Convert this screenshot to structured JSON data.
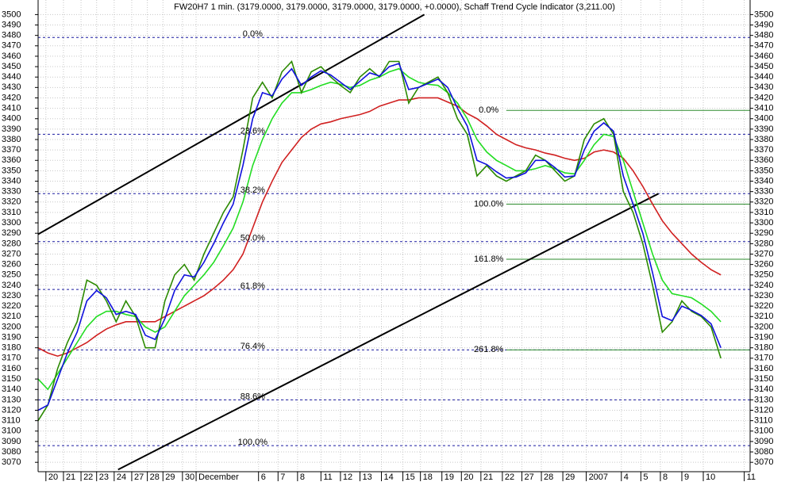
{
  "chart_data": {
    "type": "line",
    "title": "FW20H7 1 min. (3179.0000, 3179.0000, 3179.0000, 3179.0000, +0.0000), Schaff Trend Cycle Indicator (3,211.00)",
    "xlim": [
      0,
      36.5
    ],
    "ylim": [
      3061,
      3514
    ],
    "grid": true,
    "xticks": [
      {
        "value": 0.4,
        "label": "20"
      },
      {
        "value": 1.3,
        "label": "21"
      },
      {
        "value": 2.2,
        "label": "22"
      },
      {
        "value": 3.0,
        "label": "23"
      },
      {
        "value": 3.9,
        "label": "24"
      },
      {
        "value": 4.8,
        "label": "27"
      },
      {
        "value": 5.6,
        "label": "28"
      },
      {
        "value": 6.4,
        "label": "29"
      },
      {
        "value": 7.4,
        "label": "30"
      },
      {
        "value": 8.1,
        "label": "December"
      },
      {
        "value": 11.3,
        "label": "6"
      },
      {
        "value": 12.3,
        "label": "7"
      },
      {
        "value": 13.3,
        "label": "8"
      },
      {
        "value": 14.5,
        "label": "11"
      },
      {
        "value": 15.5,
        "label": "12"
      },
      {
        "value": 16.5,
        "label": "13"
      },
      {
        "value": 17.6,
        "label": "14"
      },
      {
        "value": 18.7,
        "label": "15"
      },
      {
        "value": 19.6,
        "label": "18"
      },
      {
        "value": 20.7,
        "label": "19"
      },
      {
        "value": 21.7,
        "label": "20"
      },
      {
        "value": 22.7,
        "label": "21"
      },
      {
        "value": 23.8,
        "label": "22"
      },
      {
        "value": 24.8,
        "label": "27"
      },
      {
        "value": 25.8,
        "label": "28"
      },
      {
        "value": 26.9,
        "label": "29"
      },
      {
        "value": 28.1,
        "label": "2007"
      },
      {
        "value": 29.9,
        "label": "4"
      },
      {
        "value": 30.9,
        "label": "5"
      },
      {
        "value": 31.9,
        "label": "8"
      },
      {
        "value": 33.0,
        "label": "9"
      },
      {
        "value": 34.1,
        "label": "10"
      },
      {
        "value": 36.2,
        "label": "11"
      }
    ],
    "yticks": [
      3070,
      3080,
      3090,
      3100,
      3110,
      3120,
      3130,
      3140,
      3150,
      3160,
      3170,
      3180,
      3190,
      3200,
      3210,
      3220,
      3230,
      3240,
      3250,
      3260,
      3270,
      3280,
      3290,
      3300,
      3310,
      3320,
      3330,
      3340,
      3350,
      3360,
      3370,
      3380,
      3390,
      3400,
      3410,
      3420,
      3430,
      3440,
      3450,
      3460,
      3470,
      3480,
      3490,
      3500
    ],
    "x": [
      0,
      0.5,
      1,
      1.5,
      2,
      2.5,
      3,
      3.5,
      4,
      4.5,
      5,
      5.5,
      6,
      6.5,
      7,
      7.5,
      8,
      8.5,
      9,
      9.5,
      10,
      10.5,
      11,
      11.5,
      12,
      12.5,
      13,
      13.5,
      14,
      14.5,
      15,
      15.5,
      16,
      16.5,
      17,
      17.5,
      18,
      18.5,
      19,
      19.5,
      20,
      20.5,
      21,
      21.5,
      22,
      22.5,
      23,
      23.5,
      24,
      24.5,
      25,
      25.5,
      26,
      26.5,
      27,
      27.5,
      28,
      28.5,
      29,
      29.5,
      30,
      30.5,
      31,
      31.5,
      32,
      32.5,
      33,
      33.5,
      34,
      34.5,
      35
    ],
    "series": [
      {
        "color": "#d02020",
        "values": [
          3180,
          3175,
          3172,
          3175,
          3180,
          3185,
          3192,
          3198,
          3202,
          3205,
          3205,
          3205,
          3205,
          3210,
          3215,
          3220,
          3225,
          3230,
          3237,
          3245,
          3255,
          3270,
          3295,
          3320,
          3340,
          3358,
          3370,
          3382,
          3390,
          3395,
          3397,
          3400,
          3402,
          3404,
          3407,
          3412,
          3415,
          3418,
          3418,
          3420,
          3420,
          3420,
          3416,
          3412,
          3405,
          3400,
          3393,
          3385,
          3380,
          3375,
          3372,
          3370,
          3367,
          3365,
          3362,
          3360,
          3362,
          3368,
          3370,
          3368,
          3362,
          3350,
          3335,
          3318,
          3302,
          3290,
          3280,
          3270,
          3262,
          3255,
          3250
        ]
      },
      {
        "color": "#22dd22",
        "values": [
          3150,
          3140,
          3155,
          3170,
          3185,
          3200,
          3210,
          3215,
          3215,
          3212,
          3210,
          3200,
          3195,
          3200,
          3215,
          3230,
          3240,
          3250,
          3262,
          3278,
          3295,
          3320,
          3355,
          3380,
          3400,
          3415,
          3425,
          3425,
          3428,
          3432,
          3435,
          3433,
          3430,
          3432,
          3437,
          3440,
          3445,
          3448,
          3440,
          3435,
          3433,
          3432,
          3425,
          3415,
          3400,
          3380,
          3368,
          3360,
          3355,
          3350,
          3350,
          3352,
          3355,
          3352,
          3348,
          3347,
          3360,
          3375,
          3385,
          3383,
          3360,
          3330,
          3300,
          3270,
          3245,
          3232,
          3230,
          3228,
          3222,
          3215,
          3205
        ]
      },
      {
        "color": "#2b8a00",
        "values": [
          3110,
          3125,
          3160,
          3185,
          3205,
          3245,
          3240,
          3225,
          3205,
          3225,
          3210,
          3180,
          3180,
          3225,
          3250,
          3260,
          3245,
          3270,
          3290,
          3310,
          3325,
          3370,
          3420,
          3435,
          3420,
          3445,
          3455,
          3425,
          3445,
          3450,
          3440,
          3432,
          3425,
          3440,
          3448,
          3440,
          3455,
          3455,
          3415,
          3430,
          3435,
          3440,
          3425,
          3400,
          3385,
          3345,
          3355,
          3345,
          3340,
          3345,
          3350,
          3365,
          3360,
          3350,
          3340,
          3345,
          3380,
          3395,
          3400,
          3385,
          3330,
          3310,
          3280,
          3240,
          3195,
          3205,
          3225,
          3215,
          3210,
          3200,
          3170
        ]
      },
      {
        "color": "#1010dd",
        "values": [
          3120,
          3125,
          3150,
          3175,
          3195,
          3225,
          3235,
          3228,
          3212,
          3215,
          3212,
          3192,
          3188,
          3208,
          3235,
          3250,
          3248,
          3262,
          3280,
          3300,
          3318,
          3355,
          3400,
          3425,
          3422,
          3438,
          3448,
          3432,
          3440,
          3446,
          3442,
          3435,
          3428,
          3436,
          3444,
          3441,
          3450,
          3453,
          3428,
          3430,
          3434,
          3438,
          3430,
          3410,
          3393,
          3360,
          3356,
          3349,
          3343,
          3344,
          3348,
          3360,
          3360,
          3353,
          3344,
          3345,
          3370,
          3388,
          3396,
          3388,
          3345,
          3318,
          3290,
          3252,
          3210,
          3206,
          3220,
          3216,
          3211,
          3203,
          3180
        ]
      }
    ],
    "trend_lines": [
      {
        "color": "#000000",
        "x": [
          0,
          19.8
        ],
        "y": [
          3289,
          3500
        ]
      },
      {
        "color": "#000000",
        "x": [
          4.1,
          31.8
        ],
        "y": [
          3063,
          3328
        ]
      }
    ],
    "fib_retracement": {
      "color": "#1a1aa0",
      "label_x": 11,
      "levels": [
        {
          "label": "0.0%",
          "value": 3478
        },
        {
          "label": "23.6%",
          "value": 3385
        },
        {
          "label": "38.2%",
          "value": 3328
        },
        {
          "label": "50.0%",
          "value": 3282
        },
        {
          "label": "61.8%",
          "value": 3236
        },
        {
          "label": "76.4%",
          "value": 3178
        },
        {
          "label": "88.6%",
          "value": 3130
        },
        {
          "label": "100.0%",
          "value": 3086
        }
      ]
    },
    "fib_extension": {
      "color": "#2e8b2e",
      "x_start": 24,
      "label_x": 23.1,
      "levels": [
        {
          "label": "0.0%",
          "value": 3408
        },
        {
          "label": "100.0%",
          "value": 3318
        },
        {
          "label": "161.8%",
          "value": 3265
        },
        {
          "label": "261.8%",
          "value": 3178
        }
      ]
    }
  }
}
